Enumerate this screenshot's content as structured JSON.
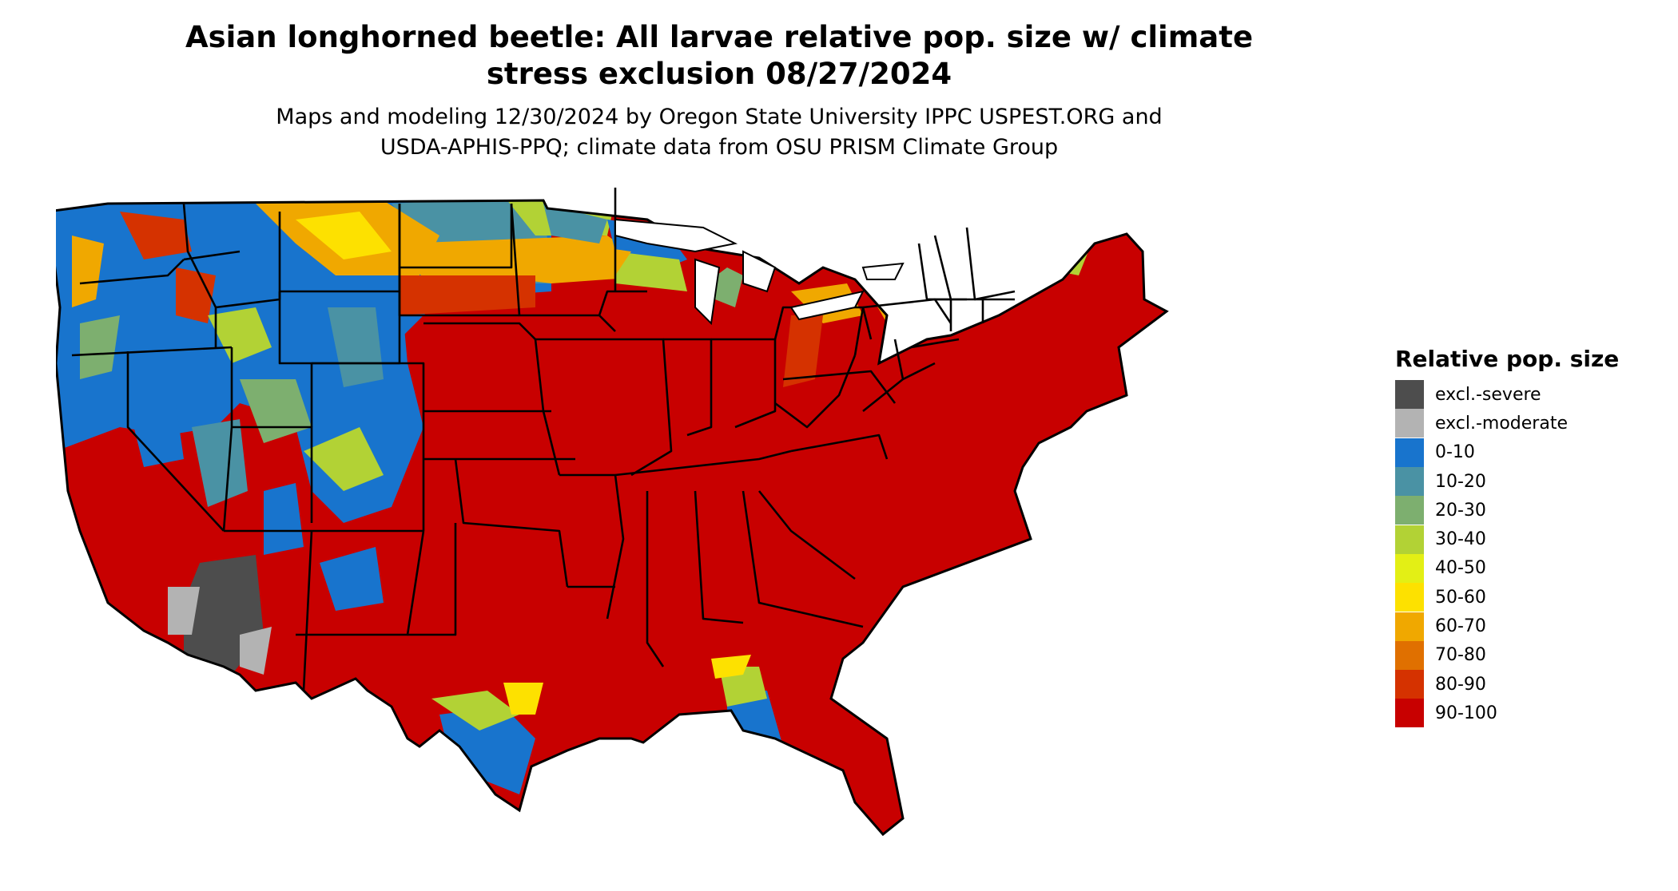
{
  "title_line1": "Asian longhorned beetle: All larvae relative pop. size w/ climate",
  "title_line2": "stress exclusion 08/27/2024",
  "subtitle_line1": "Maps and modeling 12/30/2024 by Oregon State University IPPC USPEST.ORG and",
  "subtitle_line2": "USDA-APHIS-PPQ; climate data from OSU PRISM Climate Group",
  "legend": {
    "title": "Relative pop. size",
    "items": [
      {
        "label": "excl.-severe",
        "color": "#4d4d4d"
      },
      {
        "label": "excl.-moderate",
        "color": "#b3b3b3"
      },
      {
        "label": "0-10",
        "color": "#1874cd"
      },
      {
        "label": "10-20",
        "color": "#4a92a4"
      },
      {
        "label": "20-30",
        "color": "#7daf6f"
      },
      {
        "label": "30-40",
        "color": "#b2d235"
      },
      {
        "label": "40-50",
        "color": "#e3ef15"
      },
      {
        "label": "50-60",
        "color": "#fde100"
      },
      {
        "label": "60-70",
        "color": "#f0a800"
      },
      {
        "label": "70-80",
        "color": "#e07000"
      },
      {
        "label": "80-90",
        "color": "#d53200"
      },
      {
        "label": "90-100",
        "color": "#c80000"
      }
    ]
  }
}
